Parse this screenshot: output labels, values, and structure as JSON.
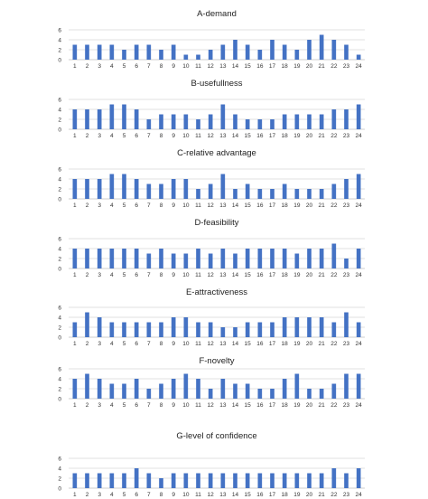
{
  "colors": {
    "bar": "#4472c4",
    "grid": "#d9d9d9",
    "text": "#333333"
  },
  "chart_data": [
    {
      "type": "bar",
      "title": "A-demand",
      "categories": [
        "1",
        "2",
        "3",
        "4",
        "5",
        "6",
        "7",
        "8",
        "9",
        "10",
        "11",
        "12",
        "13",
        "14",
        "15",
        "16",
        "17",
        "18",
        "19",
        "20",
        "21",
        "22",
        "23",
        "24"
      ],
      "values": [
        3,
        3,
        3,
        3,
        2,
        3,
        3,
        2,
        3,
        1,
        1,
        2,
        3,
        4,
        3,
        2,
        4,
        3,
        2,
        4,
        5,
        4,
        3,
        1
      ],
      "yticks": [
        0,
        2,
        4,
        6
      ],
      "ylim": [
        0,
        6
      ],
      "grid": true
    },
    {
      "type": "bar",
      "title": "B-usefullness",
      "categories": [
        "1",
        "2",
        "3",
        "4",
        "5",
        "6",
        "7",
        "8",
        "9",
        "10",
        "11",
        "12",
        "13",
        "14",
        "15",
        "16",
        "17",
        "18",
        "19",
        "20",
        "21",
        "22",
        "23",
        "24"
      ],
      "values": [
        4,
        4,
        4,
        5,
        5,
        4,
        2,
        3,
        3,
        3,
        2,
        3,
        5,
        3,
        2,
        2,
        2,
        3,
        3,
        3,
        3,
        4,
        4,
        5
      ],
      "yticks": [
        0,
        2,
        4,
        6
      ],
      "ylim": [
        0,
        6
      ],
      "grid": true
    },
    {
      "type": "bar",
      "title": "C-relative advantage",
      "categories": [
        "1",
        "2",
        "3",
        "4",
        "5",
        "6",
        "7",
        "8",
        "9",
        "10",
        "11",
        "12",
        "13",
        "14",
        "15",
        "16",
        "17",
        "18",
        "19",
        "20",
        "21",
        "22",
        "23",
        "24"
      ],
      "values": [
        4,
        4,
        4,
        5,
        5,
        4,
        3,
        3,
        4,
        4,
        2,
        3,
        5,
        2,
        3,
        2,
        2,
        3,
        2,
        2,
        2,
        3,
        4,
        5
      ],
      "yticks": [
        0,
        2,
        4,
        6
      ],
      "ylim": [
        0,
        6
      ],
      "grid": true
    },
    {
      "type": "bar",
      "title": "D-feasibility",
      "categories": [
        "1",
        "2",
        "3",
        "4",
        "5",
        "6",
        "7",
        "8",
        "9",
        "10",
        "11",
        "12",
        "13",
        "14",
        "15",
        "16",
        "17",
        "18",
        "19",
        "20",
        "21",
        "22",
        "23",
        "24"
      ],
      "values": [
        4,
        4,
        4,
        4,
        4,
        4,
        3,
        4,
        3,
        3,
        4,
        3,
        4,
        3,
        4,
        4,
        4,
        4,
        3,
        4,
        4,
        5,
        2,
        4
      ],
      "yticks": [
        0,
        2,
        4,
        6
      ],
      "ylim": [
        0,
        6
      ],
      "grid": true
    },
    {
      "type": "bar",
      "title": "E-attractiveness",
      "categories": [
        "1",
        "2",
        "3",
        "4",
        "5",
        "6",
        "7",
        "8",
        "9",
        "10",
        "11",
        "12",
        "13",
        "14",
        "15",
        "16",
        "17",
        "18",
        "19",
        "20",
        "21",
        "22",
        "23",
        "24"
      ],
      "values": [
        3,
        5,
        4,
        3,
        3,
        3,
        3,
        3,
        4,
        4,
        3,
        3,
        2,
        2,
        3,
        3,
        3,
        4,
        4,
        4,
        4,
        3,
        5,
        3
      ],
      "yticks": [
        0,
        2,
        4,
        6
      ],
      "ylim": [
        0,
        6
      ],
      "grid": true
    },
    {
      "type": "bar",
      "title": "F-novelty",
      "categories": [
        "1",
        "2",
        "3",
        "4",
        "5",
        "6",
        "7",
        "8",
        "9",
        "10",
        "11",
        "12",
        "13",
        "14",
        "15",
        "16",
        "17",
        "18",
        "19",
        "20",
        "21",
        "22",
        "23",
        "24"
      ],
      "values": [
        4,
        5,
        4,
        3,
        3,
        4,
        2,
        3,
        4,
        5,
        4,
        2,
        4,
        3,
        3,
        2,
        2,
        4,
        5,
        2,
        2,
        3,
        5,
        5
      ],
      "yticks": [
        0,
        2,
        4,
        6
      ],
      "ylim": [
        0,
        6
      ],
      "grid": true
    },
    {
      "type": "bar",
      "title": "G-level of confidence",
      "categories": [
        "1",
        "2",
        "3",
        "4",
        "5",
        "6",
        "7",
        "8",
        "9",
        "10",
        "11",
        "12",
        "13",
        "14",
        "15",
        "16",
        "17",
        "18",
        "19",
        "20",
        "21",
        "22",
        "23",
        "24"
      ],
      "values": [
        3,
        3,
        3,
        3,
        3,
        4,
        3,
        2,
        3,
        3,
        3,
        3,
        3,
        3,
        3,
        3,
        3,
        3,
        3,
        3,
        3,
        4,
        3,
        4
      ],
      "yticks": [
        0,
        2,
        4,
        6
      ],
      "ylim": [
        0,
        6
      ],
      "grid": true
    }
  ]
}
